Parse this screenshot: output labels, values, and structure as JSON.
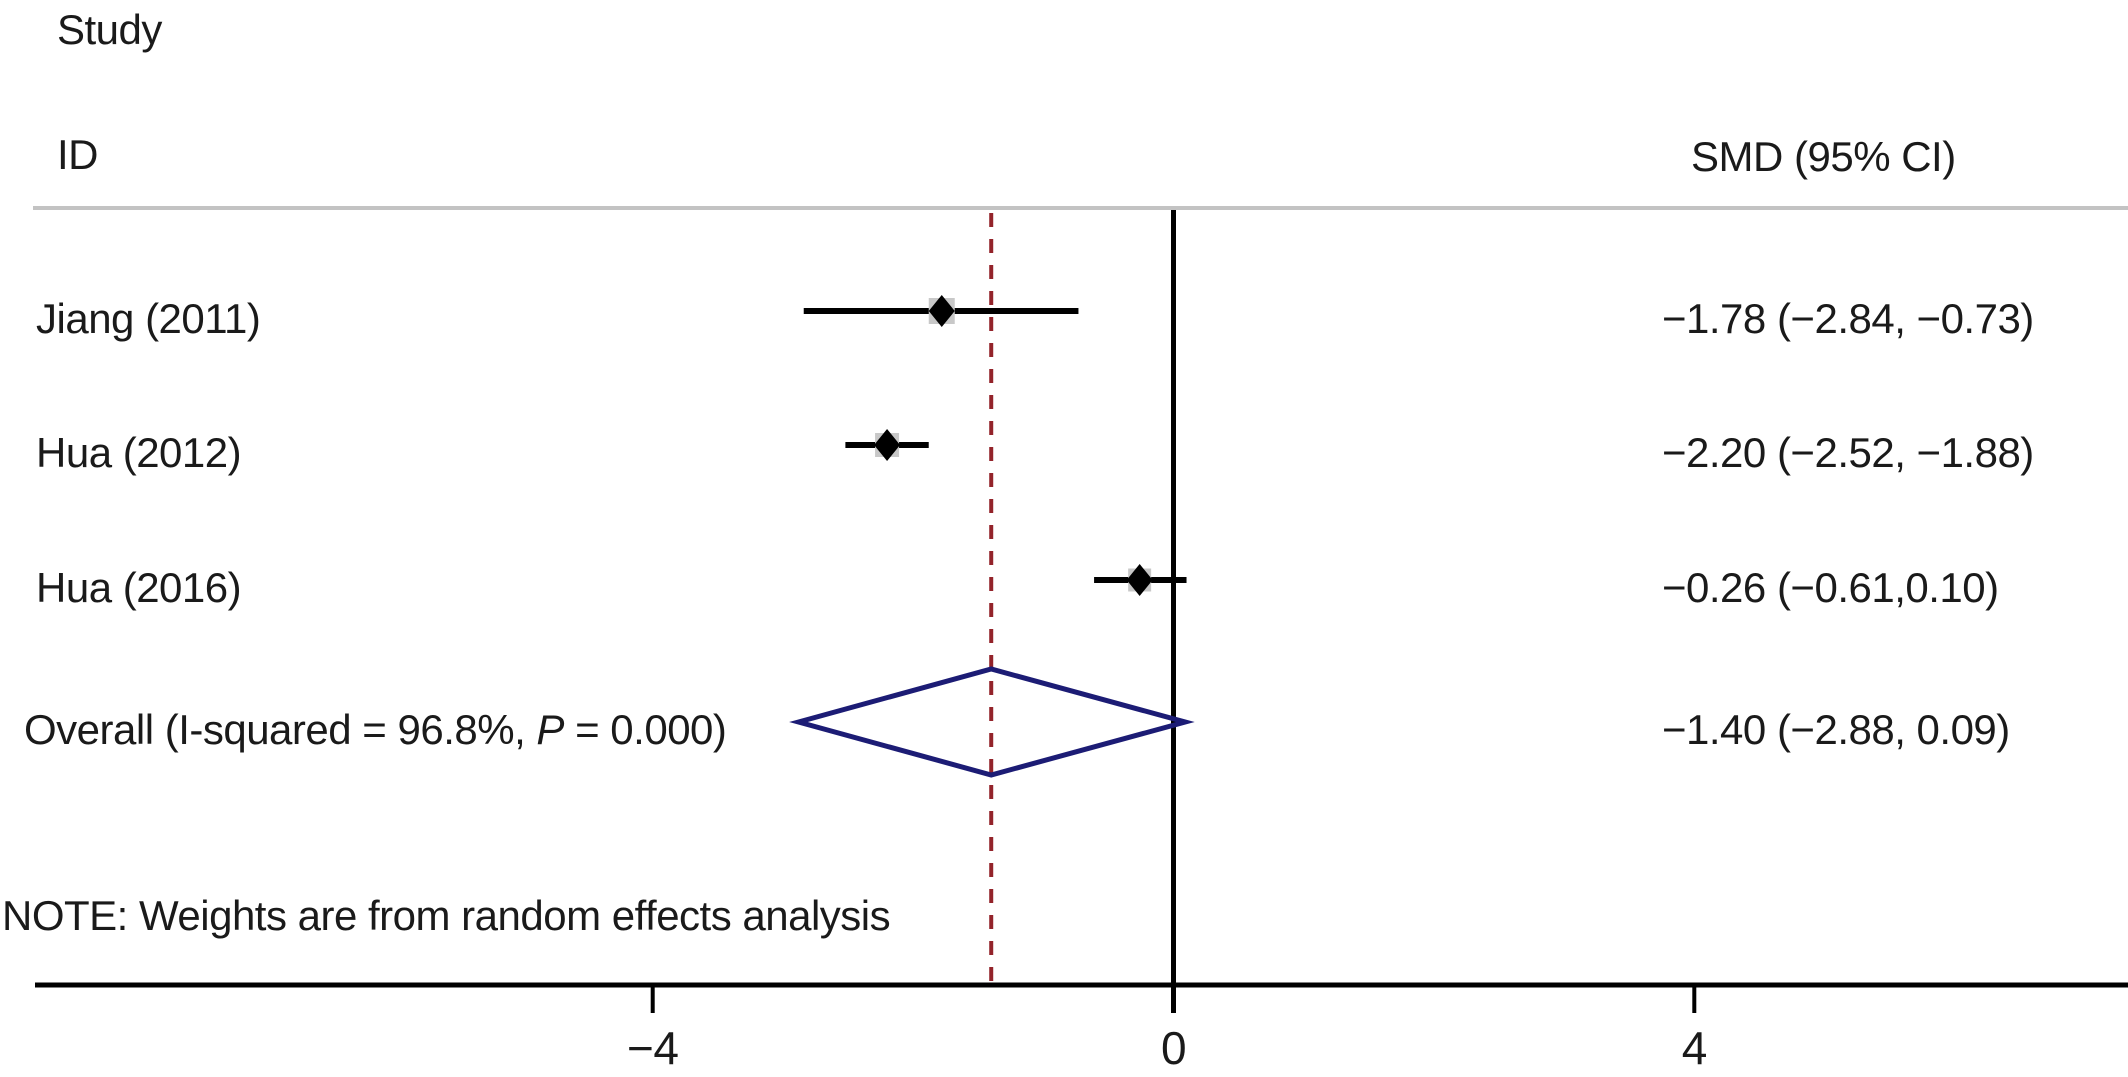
{
  "header": {
    "study_line1": "Study",
    "study_line2": "ID",
    "value_column": "SMD (95% CI)"
  },
  "note": "NOTE: Weights are from random effects analysis",
  "colors": {
    "text": "#1a1a1a",
    "header_rule": "#c3c3c3",
    "axis": "#000000",
    "ci_line": "#000000",
    "weight_box": "#c8c8c8",
    "effect_marker": "#000000",
    "overall_diamond": "#1c1c75",
    "overall_ref_line": "#93232a"
  },
  "chart_data": {
    "type": "forest",
    "effect_measure": "SMD",
    "x_axis": {
      "ticks": [
        -4,
        0,
        4
      ],
      "tick_labels": [
        "−4",
        "0",
        "4"
      ],
      "zero_line": 0
    },
    "studies": [
      {
        "label": "Jiang (2011)",
        "smd": -1.78,
        "ci_low": -2.84,
        "ci_high": -0.73,
        "value_text": "−1.78 (−2.84, −0.73)"
      },
      {
        "label": "Hua (2012)",
        "smd": -2.2,
        "ci_low": -2.52,
        "ci_high": -1.88,
        "value_text": "−2.20 (−2.52, −1.88)"
      },
      {
        "label": "Hua (2016)",
        "smd": -0.26,
        "ci_low": -0.61,
        "ci_high": 0.1,
        "value_text": "−0.26 (−0.61,0.10)"
      }
    ],
    "overall": {
      "label_pre": "Overall (I-squared = 96.8%, ",
      "label_italic": "P",
      "label_post": " = 0.000)",
      "smd": -1.4,
      "ci_low": -2.88,
      "ci_high": 0.09,
      "value_text": "−1.40 (−2.88, 0.09)",
      "heterogeneity_i_squared": "96.8%",
      "heterogeneity_p": "0.000"
    },
    "legend_position": "none",
    "grid": false
  }
}
